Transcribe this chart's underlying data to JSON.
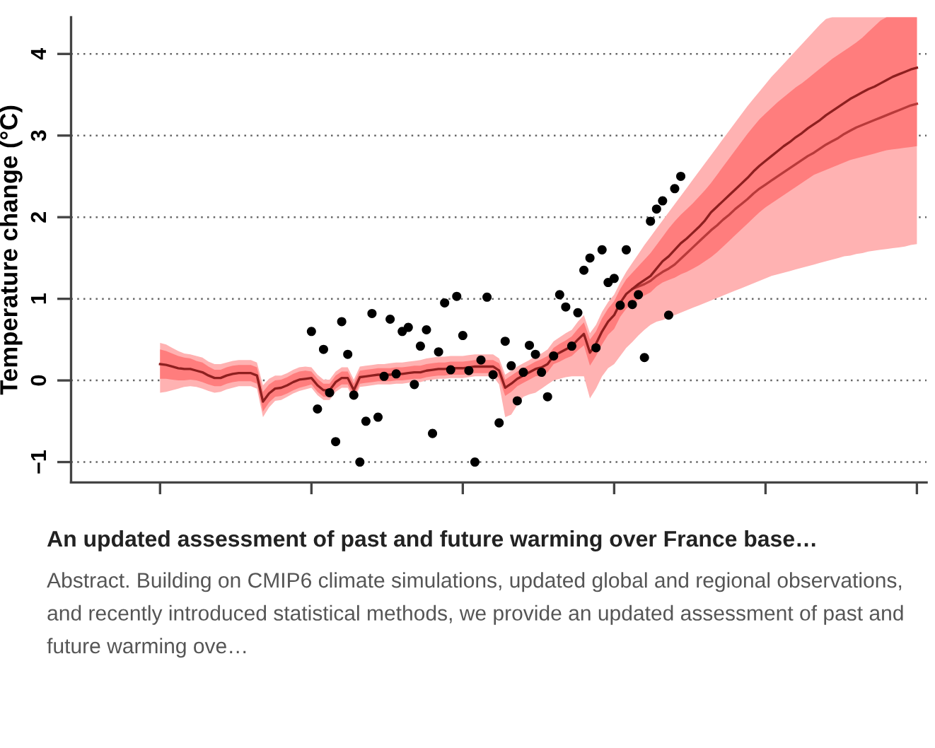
{
  "chart_data": {
    "type": "line",
    "title": "An updated assessment of past and future warming over France base…",
    "subtitle": "Abstract. Building on CMIP6 climate simulations, updated global and regional observations, and recently introduced statistical methods, we provide an updated assessment of past and future warming ove…",
    "ylabel": "Temperature change (°C)",
    "categories": [
      null,
      null,
      null,
      null,
      null,
      null,
      null,
      null,
      null,
      null,
      null,
      null,
      null,
      null,
      null,
      null,
      null,
      null,
      null,
      null,
      null,
      null,
      null,
      null,
      null,
      null,
      null,
      null,
      null,
      null,
      null,
      null,
      null,
      null,
      null,
      null,
      null,
      null,
      null,
      null,
      null,
      null,
      null,
      null,
      null,
      null,
      null,
      null,
      null,
      null,
      null,
      null,
      null,
      null,
      null,
      null,
      null,
      null,
      null,
      null,
      null,
      null,
      null,
      null,
      null,
      null,
      null,
      null,
      null,
      null,
      null,
      null,
      null,
      null,
      null,
      null,
      null,
      null,
      null,
      null,
      null,
      null,
      null,
      null,
      null,
      null,
      null,
      null,
      null,
      null,
      null,
      null,
      null,
      null,
      null,
      null,
      null,
      null,
      null,
      null,
      null,
      null,
      null,
      null,
      null,
      null,
      null,
      null,
      null,
      null,
      null,
      null,
      null,
      null,
      null,
      null,
      null,
      null,
      null,
      null,
      null,
      null,
      null,
      null,
      null,
      null
    ],
    "series": [
      {
        "color": "#b83a3a",
        "values": [
          null,
          null,
          null,
          null,
          null,
          null,
          null,
          null,
          null,
          null,
          null,
          null,
          null,
          null,
          null,
          null,
          null,
          null,
          null,
          null,
          null,
          null,
          null,
          null,
          null,
          null,
          null,
          null,
          null,
          null,
          null,
          null,
          null,
          null,
          null,
          null,
          null,
          null,
          null,
          null,
          null,
          null,
          null,
          null,
          null,
          null,
          null,
          null,
          null,
          null,
          null,
          null,
          null,
          null,
          null,
          null,
          null,
          null,
          null,
          null,
          null,
          null,
          null,
          null,
          null,
          null,
          null,
          null,
          null,
          null,
          null,
          null,
          null,
          null,
          null,
          null,
          null,
          null,
          1.12,
          1.15,
          1.18,
          1.22,
          1.28,
          1.33,
          1.37,
          1.42,
          1.49,
          1.56,
          1.63,
          1.7,
          1.77,
          1.84,
          1.9,
          1.97,
          2.03,
          2.1,
          2.16,
          2.22,
          2.29,
          2.35,
          2.4,
          2.45,
          2.5,
          2.55,
          2.6,
          2.65,
          2.7,
          2.75,
          2.79,
          2.84,
          2.89,
          2.93,
          2.97,
          3.02,
          3.06,
          3.1,
          3.13,
          3.16,
          3.19,
          3.22,
          3.25,
          3.28,
          3.31,
          3.34,
          3.37,
          3.39
        ],
        "lower": [
          -0.15,
          -0.14,
          -0.12,
          -0.1,
          -0.08,
          -0.07,
          -0.08,
          -0.1,
          -0.13,
          -0.15,
          -0.14,
          -0.11,
          -0.09,
          -0.07,
          -0.07,
          -0.07,
          -0.1,
          -0.45,
          -0.33,
          -0.25,
          -0.24,
          -0.2,
          -0.16,
          -0.13,
          -0.11,
          -0.09,
          -0.18,
          -0.24,
          -0.24,
          -0.14,
          -0.09,
          -0.09,
          -0.24,
          -0.08,
          -0.07,
          -0.06,
          -0.05,
          -0.05,
          -0.05,
          -0.04,
          -0.04,
          -0.03,
          -0.02,
          -0.02,
          0,
          0.01,
          0.02,
          0.02,
          0.03,
          0.03,
          0.03,
          0.04,
          0.05,
          0.05,
          0.05,
          0.05,
          -0.05,
          -0.45,
          -0.42,
          -0.3,
          -0.2,
          -0.17,
          -0.15,
          -0.1,
          -0.05,
          0,
          0.02,
          0.04,
          0.05,
          0.05,
          0.05,
          -0.22,
          -0.1,
          0.05,
          0.15,
          0.2,
          0.3,
          0.4,
          0.47,
          0.55,
          0.62,
          0.68,
          0.72,
          0.74,
          0.77,
          0.8,
          0.83,
          0.86,
          0.89,
          0.92,
          0.95,
          0.98,
          1.01,
          1.04,
          1.07,
          1.1,
          1.13,
          1.16,
          1.19,
          1.22,
          1.25,
          1.28,
          1.3,
          1.32,
          1.34,
          1.36,
          1.38,
          1.4,
          1.42,
          1.44,
          1.46,
          1.48,
          1.5,
          1.52,
          1.53,
          1.55,
          1.56,
          1.58,
          1.59,
          1.6,
          1.61,
          1.62,
          1.63,
          1.64,
          1.66,
          1.67
        ],
        "upper": [
          0.46,
          0.44,
          0.4,
          0.36,
          0.33,
          0.32,
          0.3,
          0.28,
          0.23,
          0.2,
          0.2,
          0.22,
          0.24,
          0.25,
          0.25,
          0.25,
          0.22,
          -0.06,
          0.02,
          0.06,
          0.06,
          0.09,
          0.13,
          0.16,
          0.17,
          0.16,
          0.07,
          0.01,
          0.01,
          0.11,
          0.16,
          0.16,
          0.01,
          0.17,
          0.18,
          0.19,
          0.2,
          0.2,
          0.21,
          0.22,
          0.22,
          0.23,
          0.24,
          0.25,
          0.27,
          0.28,
          0.29,
          0.29,
          0.3,
          0.3,
          0.3,
          0.31,
          0.32,
          0.32,
          0.32,
          0.32,
          0.27,
          0.07,
          0.12,
          0.17,
          0.21,
          0.25,
          0.3,
          0.33,
          0.38,
          0.48,
          0.53,
          0.58,
          0.62,
          0.72,
          0.8,
          0.58,
          0.68,
          0.84,
          0.96,
          1.05,
          1.2,
          1.33,
          1.44,
          1.55,
          1.66,
          1.76,
          1.86,
          1.96,
          2.06,
          2.16,
          2.26,
          2.36,
          2.46,
          2.56,
          2.66,
          2.76,
          2.86,
          2.96,
          3.06,
          3.16,
          3.26,
          3.36,
          3.45,
          3.54,
          3.63,
          3.72,
          3.8,
          3.88,
          3.96,
          4.04,
          4.12,
          4.2,
          4.28,
          4.36,
          4.43,
          4.45,
          4.45,
          4.45,
          4.45,
          4.45,
          4.45,
          4.45,
          4.45,
          4.45,
          4.45,
          4.45,
          4.45,
          4.45,
          4.45,
          4.45
        ]
      },
      {
        "color": "#8e1f1f",
        "values": [
          0.2,
          0.19,
          0.17,
          0.15,
          0.14,
          0.14,
          0.12,
          0.1,
          0.06,
          0.03,
          0.03,
          0.06,
          0.08,
          0.09,
          0.09,
          0.09,
          0.06,
          -0.26,
          -0.16,
          -0.1,
          -0.09,
          -0.06,
          -0.02,
          0.01,
          0.02,
          0.03,
          -0.06,
          -0.12,
          -0.12,
          -0.02,
          0.03,
          0.03,
          -0.12,
          0.04,
          0.05,
          0.06,
          0.07,
          0.07,
          0.07,
          0.08,
          0.08,
          0.09,
          0.1,
          0.1,
          0.12,
          0.13,
          0.14,
          0.14,
          0.15,
          0.15,
          0.15,
          0.16,
          0.17,
          0.17,
          0.17,
          0.17,
          0.12,
          -0.09,
          -0.04,
          0.02,
          0.06,
          0.1,
          0.14,
          0.16,
          0.2,
          0.3,
          0.34,
          0.38,
          0.42,
          0.5,
          0.57,
          0.34,
          0.45,
          0.6,
          0.72,
          0.8,
          0.95,
          1.06,
          1.12,
          1.18,
          1.23,
          1.28,
          1.37,
          1.46,
          1.52,
          1.6,
          1.68,
          1.74,
          1.81,
          1.88,
          1.96,
          2.06,
          2.13,
          2.2,
          2.27,
          2.34,
          2.41,
          2.48,
          2.56,
          2.63,
          2.69,
          2.75,
          2.81,
          2.87,
          2.92,
          2.98,
          3.03,
          3.09,
          3.14,
          3.19,
          3.25,
          3.3,
          3.35,
          3.4,
          3.45,
          3.49,
          3.53,
          3.57,
          3.6,
          3.64,
          3.68,
          3.72,
          3.75,
          3.78,
          3.81,
          3.83
        ],
        "lower": [
          0.02,
          0.02,
          0.01,
          0,
          0,
          0.01,
          0,
          -0.02,
          -0.05,
          -0.07,
          -0.07,
          -0.04,
          -0.02,
          -0.01,
          -0.01,
          -0.01,
          -0.04,
          -0.38,
          -0.27,
          -0.2,
          -0.19,
          -0.16,
          -0.12,
          -0.09,
          -0.07,
          -0.05,
          -0.14,
          -0.2,
          -0.2,
          -0.1,
          -0.05,
          -0.05,
          -0.2,
          -0.04,
          -0.03,
          -0.02,
          -0.01,
          -0.01,
          -0.01,
          0,
          0,
          0.01,
          0.02,
          0.02,
          0.04,
          0.05,
          0.06,
          0.06,
          0.07,
          0.07,
          0.07,
          0.08,
          0.09,
          0.09,
          0.09,
          0.09,
          0.03,
          -0.19,
          -0.14,
          -0.07,
          -0.03,
          0.01,
          0.05,
          0.06,
          0.1,
          0.2,
          0.23,
          0.27,
          0.3,
          0.37,
          0.43,
          0.18,
          0.3,
          0.44,
          0.56,
          0.63,
          0.78,
          0.88,
          0.94,
          0.99,
          1.04,
          1.08,
          1.15,
          1.2,
          1.23,
          1.26,
          1.3,
          1.33,
          1.37,
          1.41,
          1.46,
          1.51,
          1.57,
          1.64,
          1.71,
          1.78,
          1.85,
          1.92,
          1.99,
          2.06,
          2.12,
          2.17,
          2.22,
          2.27,
          2.32,
          2.37,
          2.42,
          2.47,
          2.52,
          2.55,
          2.58,
          2.61,
          2.64,
          2.67,
          2.7,
          2.72,
          2.74,
          2.76,
          2.78,
          2.8,
          2.82,
          2.83,
          2.84,
          2.85,
          2.86,
          2.87
        ],
        "upper": [
          0.38,
          0.36,
          0.33,
          0.3,
          0.28,
          0.27,
          0.24,
          0.22,
          0.17,
          0.13,
          0.13,
          0.16,
          0.18,
          0.19,
          0.19,
          0.19,
          0.16,
          -0.14,
          -0.05,
          0,
          0.01,
          0.04,
          0.08,
          0.11,
          0.12,
          0.11,
          0.02,
          -0.04,
          -0.04,
          0.06,
          0.11,
          0.11,
          -0.04,
          0.12,
          0.13,
          0.14,
          0.15,
          0.15,
          0.15,
          0.16,
          0.16,
          0.17,
          0.18,
          0.18,
          0.2,
          0.21,
          0.22,
          0.22,
          0.23,
          0.23,
          0.23,
          0.24,
          0.25,
          0.25,
          0.25,
          0.25,
          0.21,
          0.01,
          0.06,
          0.11,
          0.15,
          0.19,
          0.23,
          0.26,
          0.3,
          0.4,
          0.45,
          0.49,
          0.54,
          0.63,
          0.71,
          0.5,
          0.6,
          0.76,
          0.88,
          0.97,
          1.12,
          1.24,
          1.32,
          1.4,
          1.48,
          1.56,
          1.66,
          1.76,
          1.86,
          1.95,
          2.03,
          2.1,
          2.17,
          2.25,
          2.33,
          2.42,
          2.52,
          2.62,
          2.72,
          2.82,
          2.92,
          3.02,
          3.11,
          3.2,
          3.27,
          3.34,
          3.41,
          3.47,
          3.53,
          3.59,
          3.64,
          3.7,
          3.76,
          3.82,
          3.88,
          3.94,
          3.99,
          4.04,
          4.09,
          4.14,
          4.2,
          4.27,
          4.34,
          4.41,
          4.45,
          4.45,
          4.45,
          4.45,
          4.45,
          4.45
        ]
      },
      {
        "type": "scatter",
        "color": "#000000",
        "marker": "circle",
        "values": [
          null,
          null,
          null,
          null,
          null,
          null,
          null,
          null,
          null,
          null,
          null,
          null,
          null,
          null,
          null,
          null,
          null,
          null,
          null,
          null,
          null,
          null,
          null,
          null,
          null,
          0.6,
          -0.35,
          0.38,
          -0.15,
          -0.75,
          0.72,
          0.32,
          -0.18,
          -1.0,
          -0.5,
          0.82,
          -0.45,
          0.05,
          0.75,
          0.08,
          0.6,
          0.65,
          -0.05,
          0.42,
          0.62,
          -0.65,
          0.35,
          0.95,
          0.13,
          1.03,
          0.55,
          0.12,
          -1.0,
          0.25,
          1.02,
          0.07,
          -0.52,
          0.48,
          0.18,
          -0.25,
          0.1,
          0.43,
          0.32,
          0.1,
          -0.2,
          0.3,
          1.05,
          0.9,
          0.42,
          0.83,
          1.35,
          1.5,
          0.4,
          1.6,
          1.2,
          1.25,
          0.92,
          1.6,
          0.93,
          1.05,
          0.28,
          1.95,
          2.1,
          2.2,
          0.8,
          2.35,
          2.5,
          null,
          null,
          null,
          null,
          null,
          null,
          null,
          null,
          null,
          null,
          null,
          null,
          null,
          null,
          null,
          null,
          null,
          null,
          null,
          null,
          null,
          null,
          null,
          null,
          null,
          null,
          null,
          null,
          null,
          null,
          null,
          null,
          null,
          null,
          null,
          null,
          null,
          null,
          null
        ]
      }
    ],
    "ylim": [
      -1.25,
      4.45
    ],
    "yticks": [
      {
        "value": -1,
        "label": "−1"
      },
      0,
      1,
      2,
      3,
      4
    ],
    "grid": "y",
    "tick_labels": "y"
  }
}
